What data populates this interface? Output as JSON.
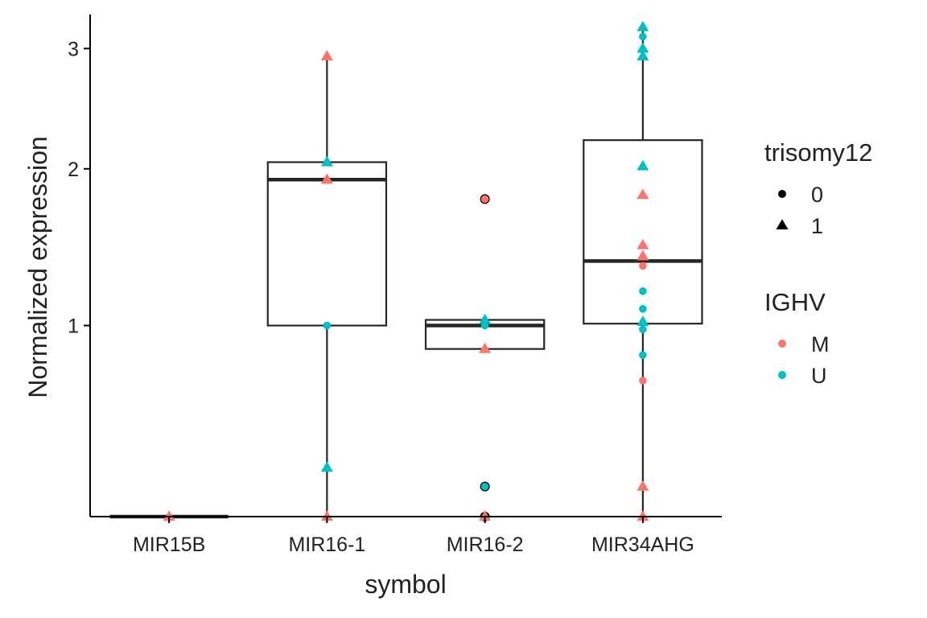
{
  "chart_data": {
    "type": "box",
    "title": "",
    "xlabel": "symbol",
    "ylabel": "Normalized expression",
    "y_scale": "sqrt",
    "ylim": [
      0.245,
      3.32
    ],
    "yticks": [
      1,
      2,
      3
    ],
    "categories": [
      "MIR15B",
      "MIR16-1",
      "MIR16-2",
      "MIR34AHG"
    ],
    "boxes": [
      {
        "category": "MIR15B",
        "lower_whisker": 0.245,
        "q1": 0.245,
        "median": 0.245,
        "q3": 0.245,
        "upper_whisker": 0.245,
        "outliers": []
      },
      {
        "category": "MIR16-1",
        "lower_whisker": 0.245,
        "q1": 1.0,
        "median": 1.92,
        "q3": 2.05,
        "upper_whisker": 2.93,
        "outliers": []
      },
      {
        "category": "MIR16-2",
        "lower_whisker": 0.88,
        "q1": 0.88,
        "median": 1.0,
        "q3": 1.03,
        "upper_whisker": 1.03,
        "outliers": [
          0.33,
          0.245,
          1.78
        ]
      },
      {
        "category": "MIR34AHG",
        "lower_whisker": 0.245,
        "q1": 1.01,
        "median": 1.37,
        "q3": 2.22,
        "upper_whisker": 3.2,
        "outliers": []
      }
    ],
    "points": [
      {
        "category": "MIR15B",
        "value": 0.245,
        "IGHV": "M",
        "trisomy12": "1"
      },
      {
        "category": "MIR16-1",
        "value": 2.93,
        "IGHV": "M",
        "trisomy12": "1"
      },
      {
        "category": "MIR16-1",
        "value": 2.05,
        "IGHV": "U",
        "trisomy12": "1"
      },
      {
        "category": "MIR16-1",
        "value": 1.92,
        "IGHV": "M",
        "trisomy12": "1"
      },
      {
        "category": "MIR16-1",
        "value": 1.0,
        "IGHV": "U",
        "trisomy12": "0"
      },
      {
        "category": "MIR16-1",
        "value": 0.39,
        "IGHV": "U",
        "trisomy12": "1"
      },
      {
        "category": "MIR16-1",
        "value": 0.245,
        "IGHV": "M",
        "trisomy12": "1"
      },
      {
        "category": "MIR16-2",
        "value": 1.78,
        "IGHV": "M",
        "trisomy12": "0"
      },
      {
        "category": "MIR16-2",
        "value": 1.03,
        "IGHV": "U",
        "trisomy12": "1"
      },
      {
        "category": "MIR16-2",
        "value": 1.0,
        "IGHV": "U",
        "trisomy12": "0"
      },
      {
        "category": "MIR16-2",
        "value": 0.88,
        "IGHV": "M",
        "trisomy12": "1"
      },
      {
        "category": "MIR16-2",
        "value": 0.33,
        "IGHV": "U",
        "trisomy12": "0"
      },
      {
        "category": "MIR16-2",
        "value": 0.245,
        "IGHV": "M",
        "trisomy12": "1"
      },
      {
        "category": "MIR34AHG",
        "value": 3.2,
        "IGHV": "U",
        "trisomy12": "1"
      },
      {
        "category": "MIR34AHG",
        "value": 3.11,
        "IGHV": "U",
        "trisomy12": "0"
      },
      {
        "category": "MIR34AHG",
        "value": 3.0,
        "IGHV": "U",
        "trisomy12": "1"
      },
      {
        "category": "MIR34AHG",
        "value": 2.93,
        "IGHV": "U",
        "trisomy12": "1"
      },
      {
        "category": "MIR34AHG",
        "value": 2.02,
        "IGHV": "U",
        "trisomy12": "1"
      },
      {
        "category": "MIR34AHG",
        "value": 1.81,
        "IGHV": "M",
        "trisomy12": "1"
      },
      {
        "category": "MIR34AHG",
        "value": 1.47,
        "IGHV": "M",
        "trisomy12": "1"
      },
      {
        "category": "MIR34AHG",
        "value": 1.4,
        "IGHV": "M",
        "trisomy12": "1"
      },
      {
        "category": "MIR34AHG",
        "value": 1.34,
        "IGHV": "M",
        "trisomy12": "0"
      },
      {
        "category": "MIR34AHG",
        "value": 1.19,
        "IGHV": "U",
        "trisomy12": "0"
      },
      {
        "category": "MIR34AHG",
        "value": 1.09,
        "IGHV": "U",
        "trisomy12": "0"
      },
      {
        "category": "MIR34AHG",
        "value": 1.02,
        "IGHV": "U",
        "trisomy12": "1"
      },
      {
        "category": "MIR34AHG",
        "value": 0.98,
        "IGHV": "U",
        "trisomy12": "0"
      },
      {
        "category": "MIR34AHG",
        "value": 0.85,
        "IGHV": "U",
        "trisomy12": "0"
      },
      {
        "category": "MIR34AHG",
        "value": 0.73,
        "IGHV": "M",
        "trisomy12": "0"
      },
      {
        "category": "MIR34AHG",
        "value": 0.33,
        "IGHV": "M",
        "trisomy12": "1"
      },
      {
        "category": "MIR34AHG",
        "value": 0.245,
        "IGHV": "M",
        "trisomy12": "1"
      }
    ],
    "legends": [
      {
        "title": "trisomy12",
        "kind": "shape",
        "entries": [
          {
            "label": "0",
            "shape": "circle"
          },
          {
            "label": "1",
            "shape": "triangle"
          }
        ]
      },
      {
        "title": "IGHV",
        "kind": "color",
        "entries": [
          {
            "label": "M",
            "color": "#F8766D"
          },
          {
            "label": "U",
            "color": "#00BFC4"
          }
        ]
      }
    ],
    "legend_position": "right",
    "grid": false
  },
  "colors": {
    "M": "#F8766D",
    "U": "#00BFC4",
    "axis": "#000000",
    "box_line": "#262626",
    "text": "#222222"
  }
}
